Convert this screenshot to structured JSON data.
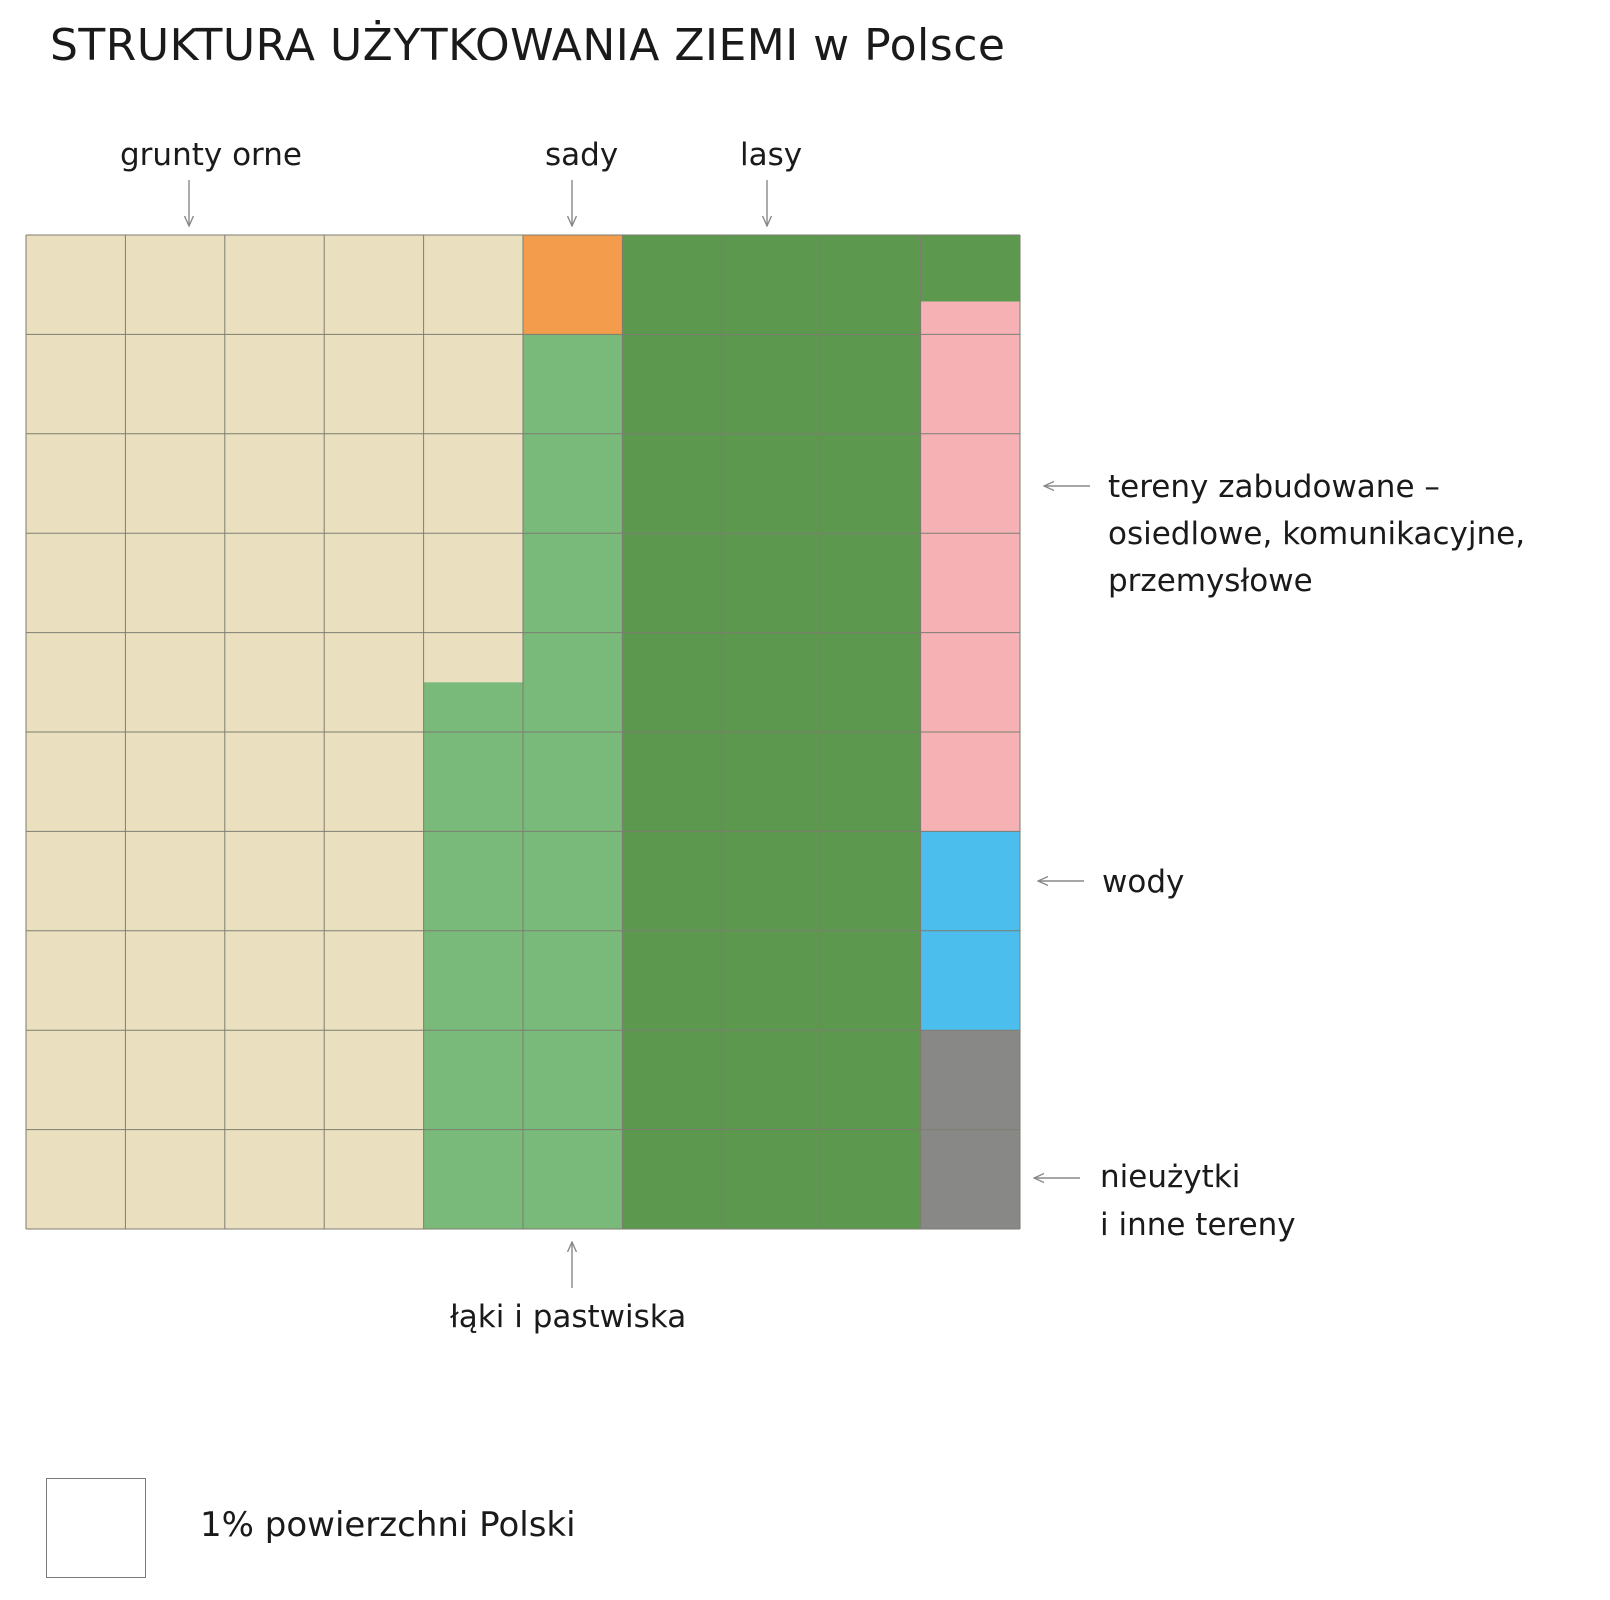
{
  "chart_data": {
    "type": "waffle",
    "title": "STRUKTURA UŻYTKOWANIA ZIEMI w Polsce",
    "grid": {
      "rows": 10,
      "cols": 10
    },
    "unit_label": "1% powierzchni Polski",
    "categories": [
      {
        "key": "grunty",
        "label": "grunty orne",
        "value": 44.5,
        "color": "#EAE0BF"
      },
      {
        "key": "sady",
        "label": "sady",
        "value": 1,
        "color": "#F39C4C"
      },
      {
        "key": "laki",
        "label": "łąki i pastwiska",
        "value": 12.5,
        "color": "#79B979"
      },
      {
        "key": "lasy",
        "label": "lasy",
        "value": 30.67,
        "color": "#5C984E"
      },
      {
        "key": "zabudowane",
        "label_lines": [
          "tereny zabudowane –",
          "osiedlowe, komunikacyjne,",
          "przemysłowe"
        ],
        "value": 5.33,
        "color": "#F5B1B4"
      },
      {
        "key": "wody",
        "label": "wody",
        "value": 2,
        "color": "#4BBEEE"
      },
      {
        "key": "nieuzytki",
        "label_lines": [
          "nieużytki",
          "i inne tereny"
        ],
        "value": 2,
        "color": "#888886"
      }
    ]
  }
}
